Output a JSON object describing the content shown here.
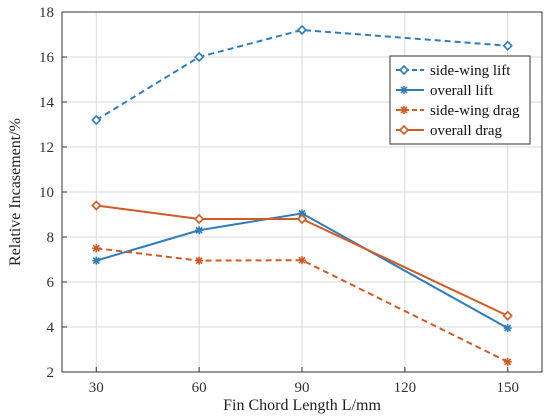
{
  "chart_data": {
    "type": "line",
    "xlabel": "Fin Chord Length L/mm",
    "ylabel": "Relative Incasement/%",
    "xlim": [
      20,
      160
    ],
    "ylim": [
      2,
      18
    ],
    "xticks": [
      30,
      60,
      90,
      120,
      150
    ],
    "yticks": [
      2,
      4,
      6,
      8,
      10,
      12,
      14,
      16,
      18
    ],
    "x": [
      30,
      60,
      90,
      150
    ],
    "grid": true,
    "legend": "top-right",
    "series": [
      {
        "name": "side-wing lift",
        "values": [
          13.2,
          16.0,
          17.2,
          16.5
        ],
        "color": "#2E7EBB",
        "dash": true,
        "marker": "diamond-open"
      },
      {
        "name": "overall lift",
        "values": [
          6.95,
          8.3,
          9.05,
          3.95
        ],
        "color": "#2E7EBB",
        "dash": false,
        "marker": "star"
      },
      {
        "name": "side-wing drag",
        "values": [
          7.5,
          6.95,
          6.97,
          2.45
        ],
        "color": "#D35A25",
        "dash": true,
        "marker": "star"
      },
      {
        "name": "overall drag",
        "values": [
          9.4,
          8.8,
          8.8,
          4.5
        ],
        "color": "#D35A25",
        "dash": false,
        "marker": "diamond-open"
      }
    ]
  }
}
